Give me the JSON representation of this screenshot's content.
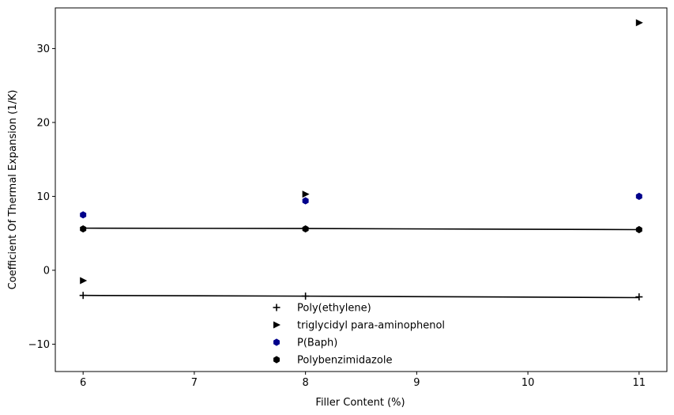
{
  "chart_data": {
    "type": "scatter",
    "title": "",
    "xlabel": "Filler Content (%)",
    "ylabel": "Coefficient Of Thermal Expansion (1/K)",
    "xlim": [
      5.75,
      11.25
    ],
    "ylim": [
      -13.7,
      35.5
    ],
    "xticks": [
      6,
      7,
      8,
      9,
      10,
      11
    ],
    "yticks": [
      -10,
      0,
      10,
      20,
      30
    ],
    "ytick_labels": [
      "−10",
      "0",
      "10",
      "20",
      "30"
    ],
    "grid": false,
    "legend_position": "bottom-center",
    "series": [
      {
        "name": "Poly(ethylene)",
        "marker": "plus",
        "color": "#000000",
        "x": [
          6,
          8,
          11
        ],
        "y": [
          -3.4,
          -3.5,
          -3.6
        ],
        "trend": {
          "x": [
            6,
            8,
            11
          ],
          "y": [
            -3.4,
            -3.5,
            -3.7
          ]
        }
      },
      {
        "name": "triglycidyl para-aminophenol",
        "marker": "triangle-right",
        "color": "#000000",
        "x": [
          6,
          8,
          11
        ],
        "y": [
          -1.4,
          10.3,
          33.5
        ]
      },
      {
        "name": "P(Baph)",
        "marker": "hexagon",
        "color": "#00008b",
        "x": [
          6,
          8,
          11
        ],
        "y": [
          7.5,
          9.4,
          10.0
        ]
      },
      {
        "name": "Polybenzimidazole",
        "marker": "hexagon",
        "color": "#000000",
        "x": [
          6,
          8,
          11
        ],
        "y": [
          5.6,
          5.6,
          5.5
        ],
        "trend": {
          "x": [
            6,
            8,
            11
          ],
          "y": [
            5.7,
            5.65,
            5.5
          ]
        }
      }
    ]
  }
}
